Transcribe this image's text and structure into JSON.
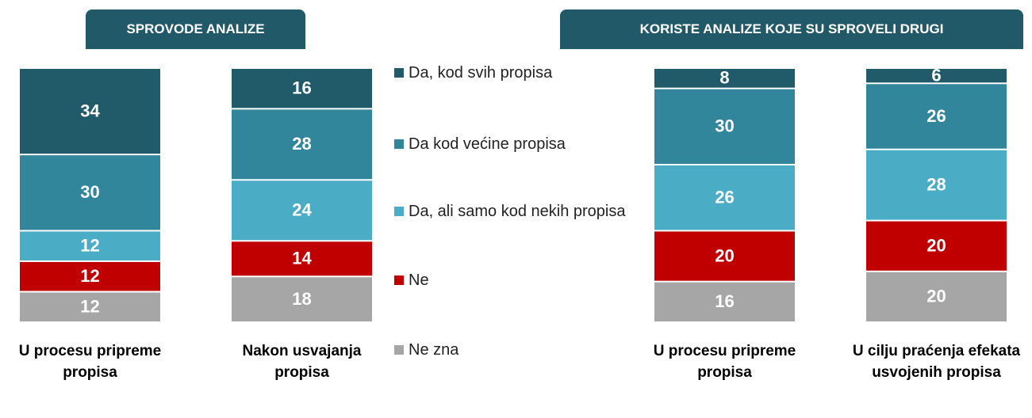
{
  "chart_data": [
    {
      "type": "bar",
      "stacked": true,
      "title": "SPROVODE ANALIZE",
      "categories": [
        "U procesu pripreme propisa",
        "Nakon usvajanja propisa"
      ],
      "ylim": [
        0,
        100
      ],
      "series": [
        {
          "name": "Da, kod svih propisa",
          "color": "#215a69",
          "values": [
            34,
            16
          ]
        },
        {
          "name": "Da kod većine propisa",
          "color": "#31869b",
          "values": [
            30,
            28
          ]
        },
        {
          "name": "Da, ali samo kod nekih propisa",
          "color": "#4bacc6",
          "values": [
            12,
            24
          ]
        },
        {
          "name": "Ne",
          "color": "#c00000",
          "values": [
            12,
            14
          ]
        },
        {
          "name": "Ne zna",
          "color": "#a6a6a6",
          "values": [
            12,
            18
          ]
        }
      ]
    },
    {
      "type": "bar",
      "stacked": true,
      "title": "KORISTE ANALIZE KOJE SU SPROVELI DRUGI",
      "categories": [
        "U procesu pripreme propisa",
        "U cilju praćenja efekata usvojenih propisa"
      ],
      "ylim": [
        0,
        100
      ],
      "series": [
        {
          "color": "#215a69",
          "values": [
            8,
            6
          ]
        },
        {
          "color": "#31869b",
          "values": [
            30,
            26
          ]
        },
        {
          "color": "#4bacc6",
          "values": [
            26,
            28
          ]
        },
        {
          "color": "#c00000",
          "values": [
            20,
            20
          ]
        },
        {
          "color": "#a6a6a6",
          "values": [
            16,
            20
          ]
        }
      ]
    }
  ]
}
